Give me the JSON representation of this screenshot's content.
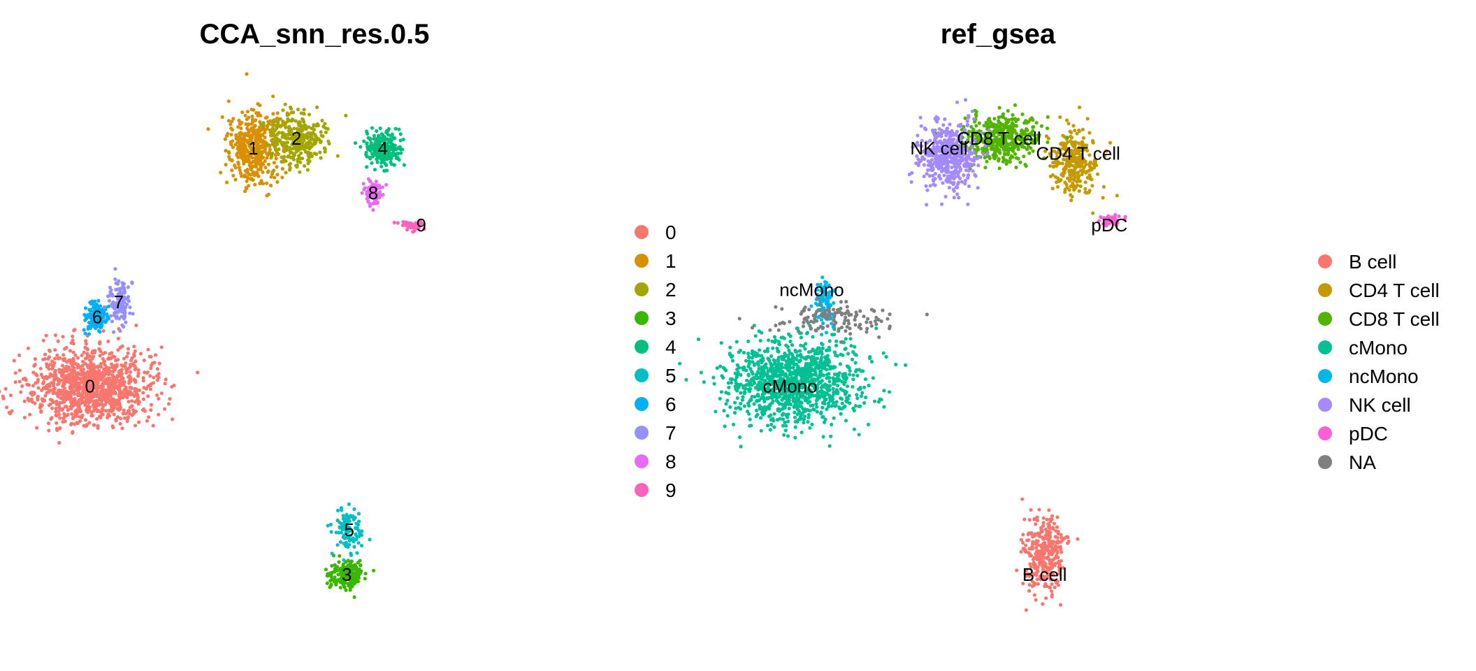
{
  "chart_data": [
    {
      "type": "scatter",
      "title": "CCA_snn_res.0.5",
      "legend_position": "right",
      "grid": false,
      "axes_visible": false,
      "xlim": [
        -10,
        13
      ],
      "ylim": [
        -12,
        10
      ],
      "legend": [
        {
          "label": "0",
          "color": "#F8766D"
        },
        {
          "label": "1",
          "color": "#D89000"
        },
        {
          "label": "2",
          "color": "#A3A500"
        },
        {
          "label": "3",
          "color": "#39B600"
        },
        {
          "label": "4",
          "color": "#00BF7D"
        },
        {
          "label": "5",
          "color": "#00BFC4"
        },
        {
          "label": "6",
          "color": "#00B0F6"
        },
        {
          "label": "7",
          "color": "#9590FF"
        },
        {
          "label": "8",
          "color": "#E76BF3"
        },
        {
          "label": "9",
          "color": "#FF62BC"
        }
      ],
      "clusters": [
        {
          "label": "0",
          "color": "#F8766D",
          "n": 1100,
          "cx": -8.0,
          "cy": -2.2,
          "rx": 2.2,
          "ry": 1.3,
          "label_x": -8.0,
          "label_y": -2.2
        },
        {
          "label": "1",
          "color": "#D89000",
          "n": 420,
          "cx": -1.2,
          "cy": 7.4,
          "rx": 0.9,
          "ry": 1.2,
          "label_x": -1.2,
          "label_y": 7.4
        },
        {
          "label": "2",
          "color": "#A3A500",
          "n": 340,
          "cx": 0.6,
          "cy": 7.8,
          "rx": 1.0,
          "ry": 0.9,
          "label_x": 0.6,
          "label_y": 7.8
        },
        {
          "label": "3",
          "color": "#39B600",
          "n": 200,
          "cx": 2.7,
          "cy": -9.8,
          "rx": 0.6,
          "ry": 0.5,
          "label_x": 2.7,
          "label_y": -9.8
        },
        {
          "label": "4",
          "color": "#00BF7D",
          "n": 230,
          "cx": 4.2,
          "cy": 7.4,
          "rx": 0.6,
          "ry": 0.6,
          "label_x": 4.2,
          "label_y": 7.4
        },
        {
          "label": "5",
          "color": "#00BFC4",
          "n": 110,
          "cx": 2.8,
          "cy": -8.0,
          "rx": 0.5,
          "ry": 0.8,
          "label_x": 2.8,
          "label_y": -8.0
        },
        {
          "label": "6",
          "color": "#00B0F6",
          "n": 150,
          "cx": -7.7,
          "cy": 0.6,
          "rx": 0.4,
          "ry": 0.5,
          "label_x": -7.7,
          "label_y": 0.6
        },
        {
          "label": "7",
          "color": "#9590FF",
          "n": 120,
          "cx": -6.8,
          "cy": 1.2,
          "rx": 0.35,
          "ry": 0.8,
          "label_x": -6.8,
          "label_y": 1.2
        },
        {
          "label": "8",
          "color": "#E76BF3",
          "n": 90,
          "cx": 3.8,
          "cy": 5.6,
          "rx": 0.35,
          "ry": 0.4,
          "label_x": 3.8,
          "label_y": 5.6
        },
        {
          "label": "9",
          "color": "#FF62BC",
          "n": 40,
          "cx": 5.4,
          "cy": 4.3,
          "rx": 0.6,
          "ry": 0.2,
          "label_x": 5.8,
          "label_y": 4.3
        }
      ]
    },
    {
      "type": "scatter",
      "title": "ref_gsea",
      "legend_position": "right",
      "grid": false,
      "axes_visible": false,
      "xlim": [
        -10,
        13
      ],
      "ylim": [
        -12,
        10
      ],
      "legend": [
        {
          "label": "B cell",
          "color": "#F8766D"
        },
        {
          "label": "CD4 T cell",
          "color": "#C49A00"
        },
        {
          "label": "CD8 T cell",
          "color": "#53B400"
        },
        {
          "label": "cMono",
          "color": "#00C094"
        },
        {
          "label": "ncMono",
          "color": "#00B6EB"
        },
        {
          "label": "NK cell",
          "color": "#A58AFF"
        },
        {
          "label": "pDC",
          "color": "#FB61D7"
        },
        {
          "label": "NA",
          "color": "#7F7F7F"
        }
      ],
      "clusters": [
        {
          "label": "B cell",
          "color": "#F8766D",
          "n": 310,
          "cx": 2.8,
          "cy": -9.0,
          "rx": 0.7,
          "ry": 1.3,
          "label_x": 2.8,
          "label_y": -9.8
        },
        {
          "label": "CD4 T cell",
          "color": "#C49A00",
          "n": 300,
          "cx": 4.0,
          "cy": 6.8,
          "rx": 0.8,
          "ry": 1.1,
          "label_x": 4.2,
          "label_y": 7.2
        },
        {
          "label": "CD8 T cell",
          "color": "#53B400",
          "n": 420,
          "cx": 0.9,
          "cy": 7.8,
          "rx": 1.3,
          "ry": 0.8,
          "label_x": 0.9,
          "label_y": 7.8
        },
        {
          "label": "cMono",
          "color": "#00C094",
          "n": 1150,
          "cx": -7.6,
          "cy": -2.0,
          "rx": 2.2,
          "ry": 1.4,
          "label_x": -7.8,
          "label_y": -2.2
        },
        {
          "label": "ncMono",
          "color": "#00B6EB",
          "n": 110,
          "cx": -6.4,
          "cy": 1.2,
          "rx": 0.3,
          "ry": 0.8,
          "label_x": -6.9,
          "label_y": 1.7
        },
        {
          "label": "NK cell",
          "color": "#A58AFF",
          "n": 450,
          "cx": -1.2,
          "cy": 7.1,
          "rx": 1.0,
          "ry": 1.1,
          "label_x": -1.6,
          "label_y": 7.4
        },
        {
          "label": "pDC",
          "color": "#FB61D7",
          "n": 40,
          "cx": 5.5,
          "cy": 4.5,
          "rx": 0.5,
          "ry": 0.2,
          "label_x": 5.5,
          "label_y": 4.3
        },
        {
          "label": "NA",
          "color": "#7F7F7F",
          "n": 120,
          "cx": -6.0,
          "cy": 0.5,
          "rx": 2.0,
          "ry": 0.5,
          "label_x": null,
          "label_y": null
        }
      ]
    }
  ]
}
